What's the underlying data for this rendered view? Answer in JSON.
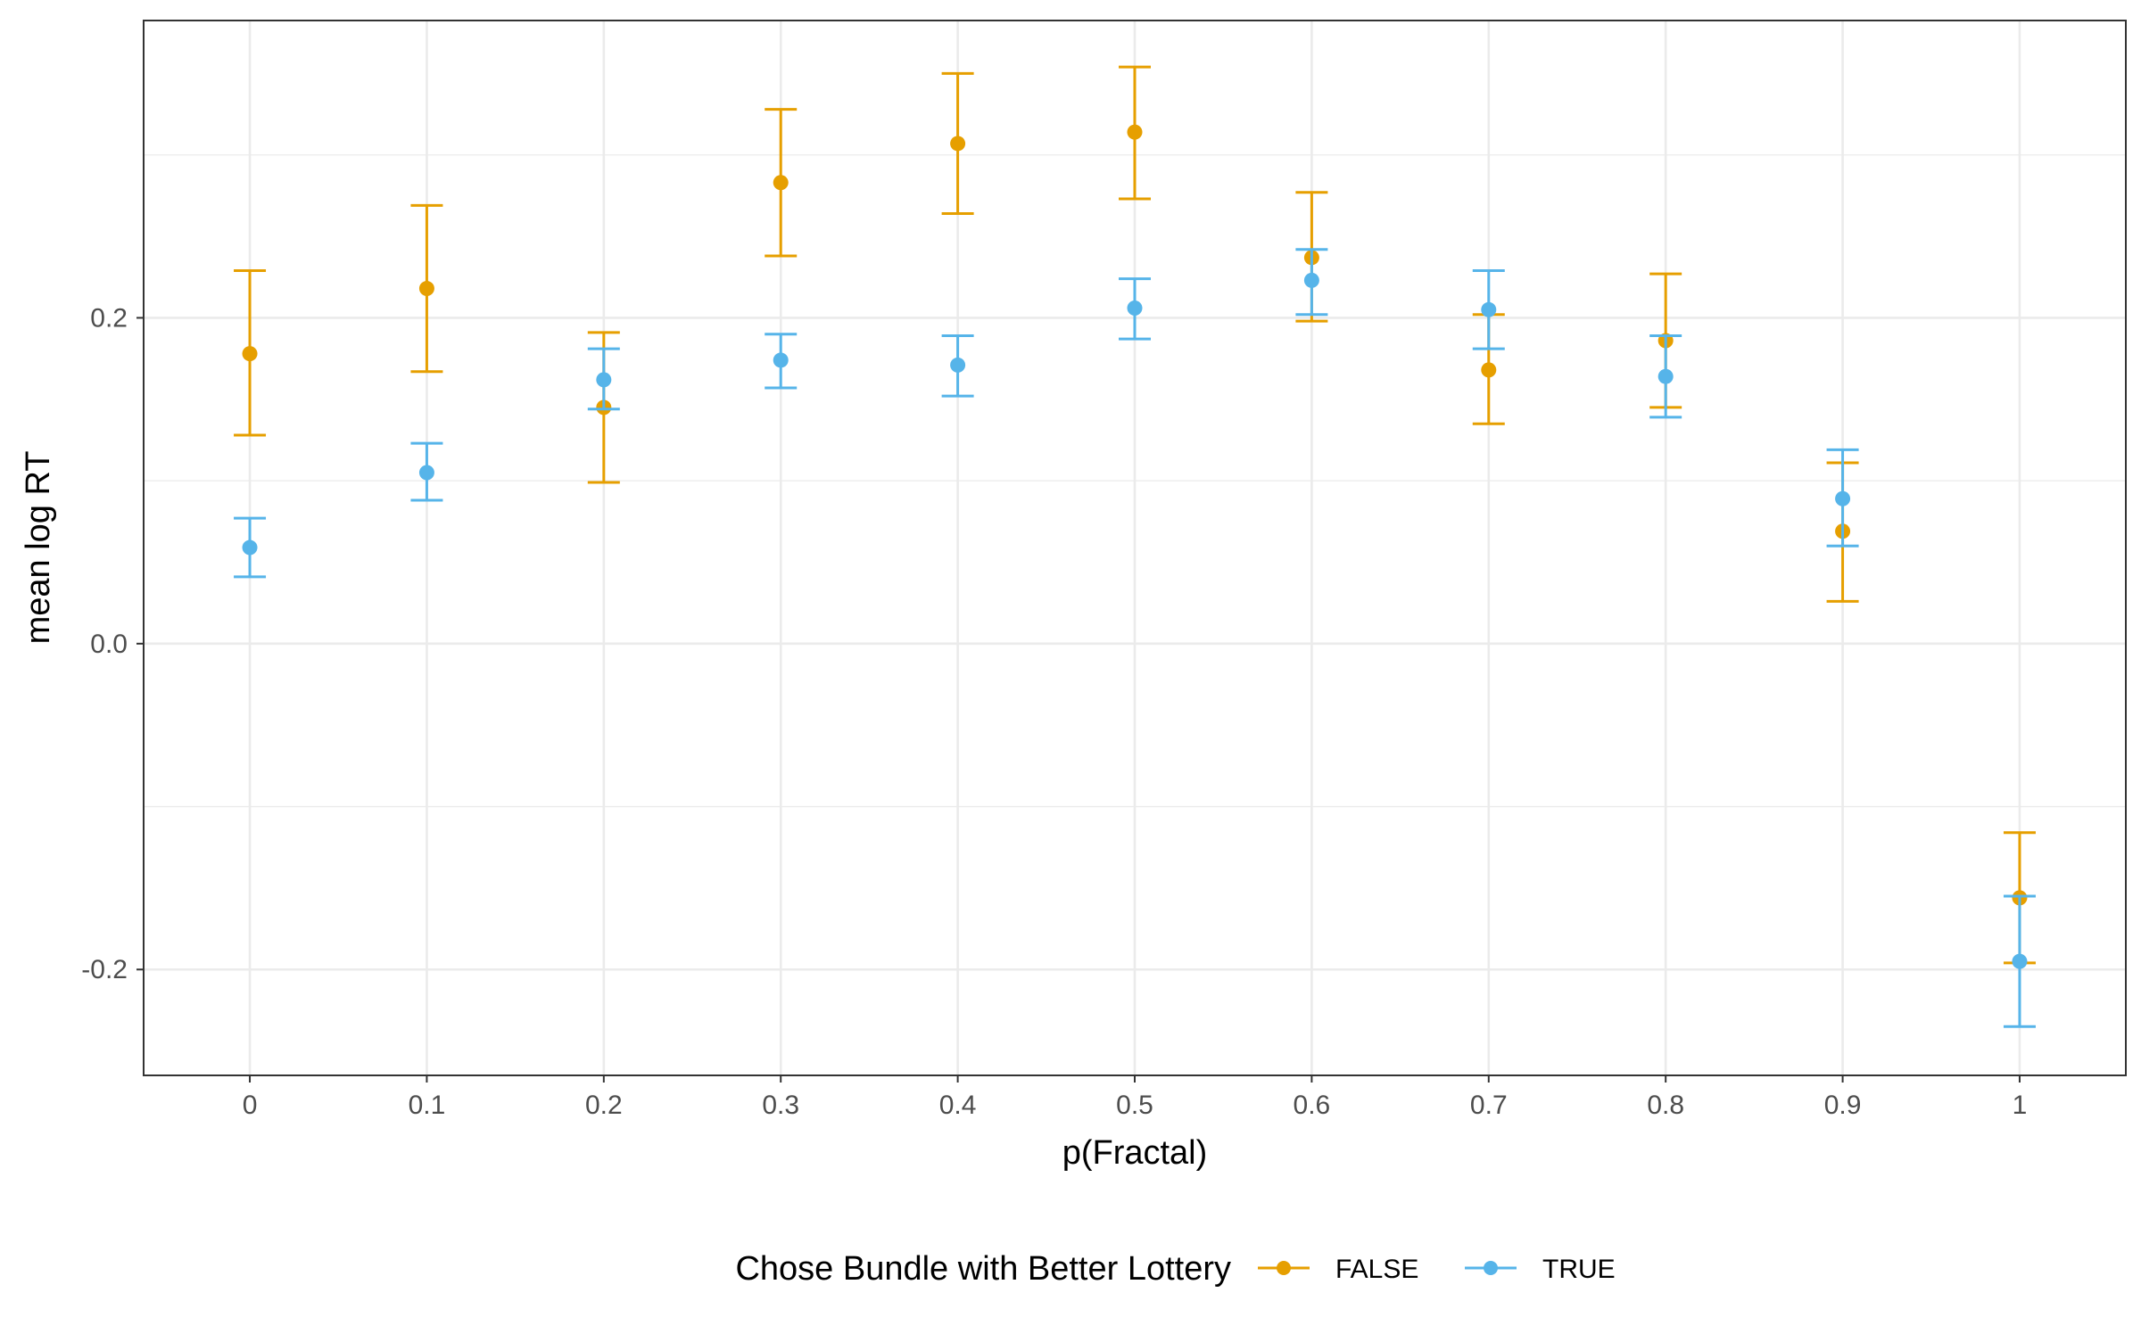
{
  "chart_data": {
    "type": "scatter",
    "title": "",
    "xlabel": "p(Fractal)",
    "ylabel": "mean log RT",
    "x": [
      0,
      0.1,
      0.2,
      0.3,
      0.4,
      0.5,
      0.6,
      0.7,
      0.8,
      0.9,
      1
    ],
    "x_tick_labels": [
      "0",
      "0.1",
      "0.2",
      "0.3",
      "0.4",
      "0.5",
      "0.6",
      "0.7",
      "0.8",
      "0.9",
      "1"
    ],
    "y_ticks": [
      -0.2,
      0.0,
      0.2
    ],
    "y_tick_labels": [
      "-0.2",
      "0.0",
      "0.2"
    ],
    "xlim": [
      -0.06,
      1.06
    ],
    "ylim": [
      -0.265,
      0.3825
    ],
    "grid": true,
    "legend": {
      "title": "Chose Bundle with Better Lottery",
      "position": "bottom"
    },
    "series": [
      {
        "name": "FALSE",
        "color": "#E69F00",
        "y": [
          0.178,
          0.218,
          0.145,
          0.283,
          0.307,
          0.314,
          0.237,
          0.168,
          0.186,
          0.069,
          -0.156
        ],
        "lower": [
          0.128,
          0.167,
          0.099,
          0.238,
          0.264,
          0.273,
          0.198,
          0.135,
          0.145,
          0.026,
          -0.196
        ],
        "upper": [
          0.229,
          0.269,
          0.191,
          0.328,
          0.35,
          0.354,
          0.277,
          0.202,
          0.227,
          0.111,
          -0.116
        ]
      },
      {
        "name": "TRUE",
        "color": "#56B4E9",
        "y": [
          0.059,
          0.105,
          0.162,
          0.174,
          0.171,
          0.206,
          0.223,
          0.205,
          0.164,
          0.089,
          -0.195
        ],
        "lower": [
          0.041,
          0.088,
          0.144,
          0.157,
          0.152,
          0.187,
          0.202,
          0.181,
          0.139,
          0.06,
          -0.235
        ],
        "upper": [
          0.077,
          0.123,
          0.181,
          0.19,
          0.189,
          0.224,
          0.242,
          0.229,
          0.189,
          0.119,
          -0.155
        ]
      }
    ]
  }
}
